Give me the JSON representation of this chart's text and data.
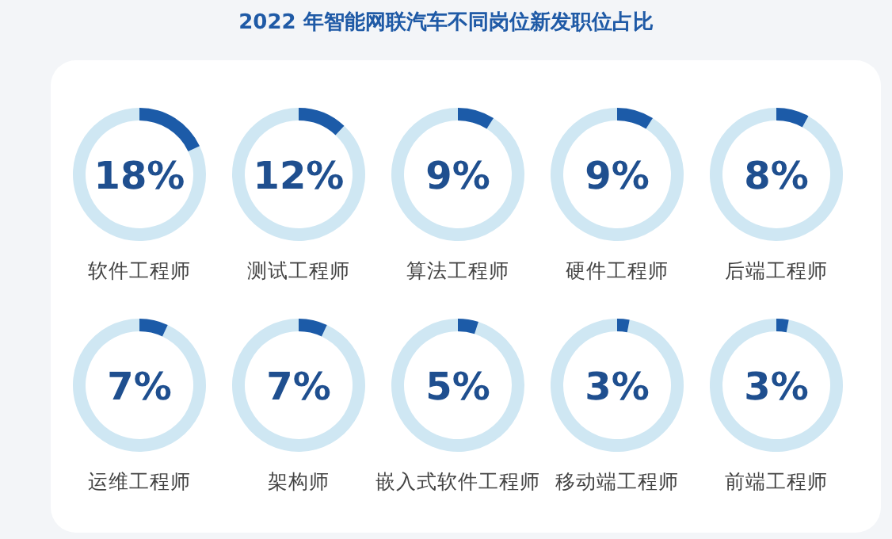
{
  "chart_data": [
    {
      "type": "other",
      "title": "2022 年智能网联汽车不同岗位新发职位占比"
    },
    {
      "type": "donut",
      "xlabel": "软件工程师",
      "categories": [
        null,
        null
      ],
      "values": [
        18,
        82
      ],
      "colors": [
        "#1c5ba8",
        "#cfe7f3"
      ],
      "annotations": [
        "18%"
      ]
    },
    {
      "type": "donut",
      "xlabel": "测试工程师",
      "categories": [
        null,
        null
      ],
      "values": [
        12,
        88
      ],
      "colors": [
        "#1c5ba8",
        "#cfe7f3"
      ],
      "annotations": [
        "12%"
      ]
    },
    {
      "type": "donut",
      "xlabel": "算法工程师",
      "categories": [
        null,
        null
      ],
      "values": [
        9,
        91
      ],
      "colors": [
        "#1c5ba8",
        "#cfe7f3"
      ],
      "annotations": [
        "9%"
      ]
    },
    {
      "type": "donut",
      "xlabel": "硬件工程师",
      "categories": [
        null,
        null
      ],
      "values": [
        9,
        91
      ],
      "colors": [
        "#1c5ba8",
        "#cfe7f3"
      ],
      "annotations": [
        "9%"
      ]
    },
    {
      "type": "donut",
      "xlabel": "后端工程师",
      "categories": [
        null,
        null
      ],
      "values": [
        8,
        92
      ],
      "colors": [
        "#1c5ba8",
        "#cfe7f3"
      ],
      "annotations": [
        "8%"
      ]
    },
    {
      "type": "donut",
      "xlabel": "运维工程师",
      "categories": [
        null,
        null
      ],
      "values": [
        7,
        93
      ],
      "colors": [
        "#1c5ba8",
        "#cfe7f3"
      ],
      "annotations": [
        "7%"
      ]
    },
    {
      "type": "donut",
      "xlabel": "架构师",
      "categories": [
        null,
        null
      ],
      "values": [
        7,
        93
      ],
      "colors": [
        "#1c5ba8",
        "#cfe7f3"
      ],
      "annotations": [
        "7%"
      ]
    },
    {
      "type": "donut",
      "xlabel": "嵌入式软件工程师",
      "categories": [
        null,
        null
      ],
      "values": [
        5,
        95
      ],
      "colors": [
        "#1c5ba8",
        "#cfe7f3"
      ],
      "annotations": [
        "5%"
      ]
    },
    {
      "type": "donut",
      "xlabel": "移动端工程师",
      "categories": [
        null,
        null
      ],
      "values": [
        3,
        97
      ],
      "colors": [
        "#1c5ba8",
        "#cfe7f3"
      ],
      "annotations": [
        "3%"
      ]
    },
    {
      "type": "donut",
      "xlabel": "前端工程师",
      "categories": [
        null,
        null
      ],
      "values": [
        3,
        97
      ],
      "colors": [
        "#1c5ba8",
        "#cfe7f3"
      ],
      "annotations": [
        "3%"
      ]
    }
  ]
}
